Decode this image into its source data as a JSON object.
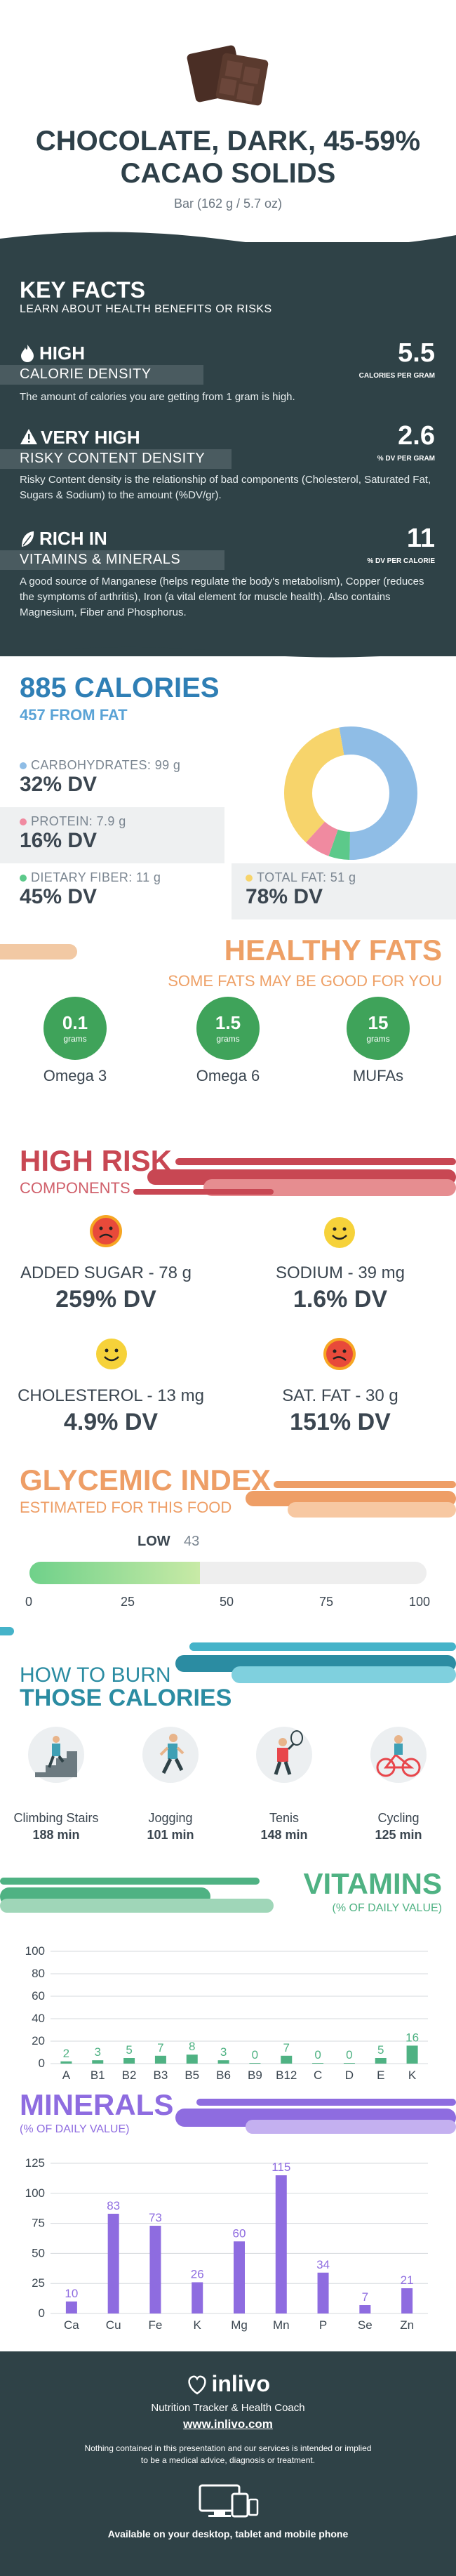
{
  "header": {
    "title": "CHOCOLATE, DARK, 45-59% CACAO SOLIDS",
    "serving": "Bar (162 g / 5.7 oz)"
  },
  "key_facts": {
    "title": "KEY FACTS",
    "subtitle": "LEARN ABOUT HEALTH BENEFITS OR RISKS",
    "items": [
      {
        "level": "HIGH",
        "name": "CALORIE DENSITY",
        "value": "5.5",
        "unit": "CALORIES PER GRAM",
        "desc": "The amount of calories you are getting from 1 gram is high.",
        "icon": "flame-icon"
      },
      {
        "level": "VERY HIGH",
        "name": "RISKY CONTENT DENSITY",
        "value": "2.6",
        "unit": "% DV PER GRAM",
        "desc": "Risky Content density is the relationship of bad components (Cholesterol, Saturated Fat, Sugars & Sodium) to the amount (%DV/gr).",
        "icon": "warning-icon"
      },
      {
        "level": "RICH  IN",
        "name": "VITAMINS & MINERALS",
        "value": "11",
        "unit": "% DV PER CALORIE",
        "desc": "A good source of Manganese (helps regulate the body's metabolism), Copper (reduces the symptoms of arthritis), Iron (a vital element for muscle health). Also contains Magnesium, Fiber and Phosphorus.",
        "icon": "leaf-icon"
      }
    ]
  },
  "calories": {
    "title": "885 CALORIES",
    "from_fat": "457 FROM FAT",
    "macros": [
      {
        "label": "CARBOHYDRATES: 99 g",
        "dv": "32% DV",
        "color": "#8fbde6",
        "value": 32
      },
      {
        "label": "PROTEIN: 7.9 g",
        "dv": "16% DV",
        "color": "#f08aa0",
        "value": 16
      },
      {
        "label": "DIETARY FIBER: 11 g",
        "dv": "45% DV",
        "color": "#5cc98a",
        "value": 45
      },
      {
        "label": "TOTAL FAT: 51 g",
        "dv": "78% DV",
        "color": "#f7d46b",
        "value": 78
      }
    ]
  },
  "healthy_fats": {
    "title": "HEALTHY FATS",
    "subtitle": "SOME FATS MAY BE GOOD FOR YOU",
    "items": [
      {
        "value": "0.1",
        "unit": "grams",
        "label": "Omega 3"
      },
      {
        "value": "1.5",
        "unit": "grams",
        "label": "Omega 6"
      },
      {
        "value": "15",
        "unit": "grams",
        "label": "MUFAs"
      }
    ]
  },
  "high_risk": {
    "title": "HIGH RISK",
    "subtitle": "COMPONENTS",
    "items": [
      {
        "label": "ADDED SUGAR - 78 g",
        "dv": "259% DV",
        "face": "sad"
      },
      {
        "label": "SODIUM - 39 mg",
        "dv": "1.6% DV",
        "face": "happy"
      },
      {
        "label": "CHOLESTEROL - 13 mg",
        "dv": "4.9% DV",
        "face": "happy"
      },
      {
        "label": "SAT. FAT - 30 g",
        "dv": "151% DV",
        "face": "sad"
      }
    ]
  },
  "glycemic": {
    "title": "GLYCEMIC INDEX",
    "subtitle": "ESTIMATED FOR THIS FOOD",
    "level": "LOW",
    "value": 43,
    "ticks": [
      "0",
      "25",
      "50",
      "75",
      "100"
    ]
  },
  "burn": {
    "title1": "HOW TO BURN",
    "title2": "THOSE CALORIES",
    "items": [
      {
        "label": "Climbing Stairs",
        "time": "188 min"
      },
      {
        "label": "Jogging",
        "time": "101 min"
      },
      {
        "label": "Tenis",
        "time": "148 min"
      },
      {
        "label": "Cycling",
        "time": "125 min"
      }
    ]
  },
  "chart_data": [
    {
      "type": "bar",
      "title": "VITAMINS",
      "subtitle": "(% OF DAILY VALUE)",
      "categories": [
        "A",
        "B1",
        "B2",
        "B3",
        "B5",
        "B6",
        "B9",
        "B12",
        "C",
        "D",
        "E",
        "K"
      ],
      "values": [
        2,
        3,
        5,
        7,
        8,
        3,
        0,
        7,
        0,
        0,
        5,
        16
      ],
      "ylim": [
        0,
        100
      ],
      "yticks": [
        "0",
        "20",
        "40",
        "60",
        "80",
        "100"
      ],
      "color": "#4fb283"
    },
    {
      "type": "bar",
      "title": "MINERALS",
      "subtitle": "(% OF DAILY VALUE)",
      "categories": [
        "Ca",
        "Cu",
        "Fe",
        "K",
        "Mg",
        "Mn",
        "P",
        "Se",
        "Zn"
      ],
      "values": [
        10,
        83,
        73,
        26,
        60,
        115,
        34,
        7,
        21
      ],
      "ylim": [
        0,
        125
      ],
      "yticks": [
        "0",
        "25",
        "50",
        "75",
        "100",
        "125"
      ],
      "color": "#8e6ce0"
    }
  ],
  "footer": {
    "brand": "inlivo",
    "tagline": "Nutrition Tracker & Health Coach",
    "url": "www.inlivo.com",
    "disclaimer": "Nothing contained in this presentation and our services is intended or implied to be a medical advice, diagnosis or treatment.",
    "available": "Available on your desktop, tablet and mobile phone"
  }
}
